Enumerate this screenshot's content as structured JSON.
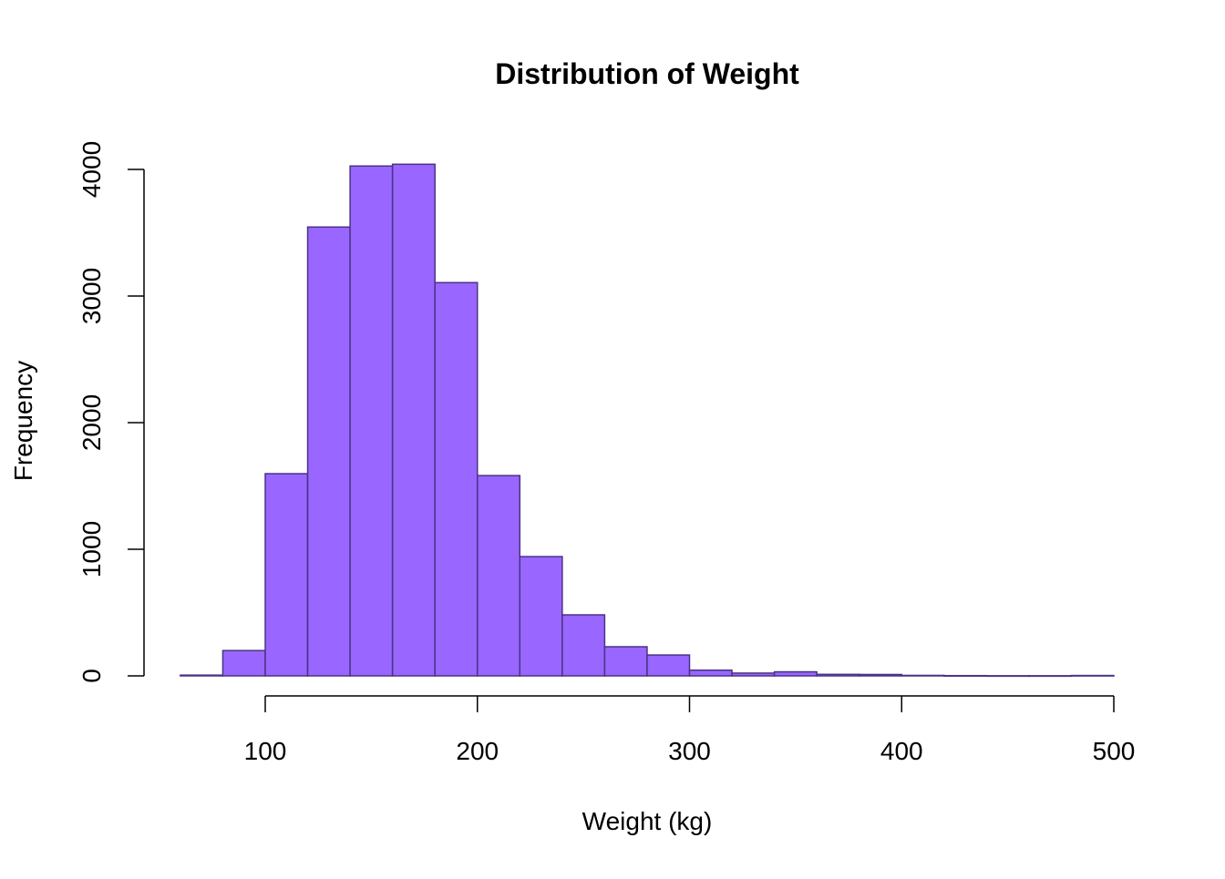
{
  "chart_data": {
    "type": "bar",
    "title": "Distribution of Weight",
    "xlabel": "Weight (kg)",
    "ylabel": "Frequency",
    "bin_edges": [
      60,
      80,
      100,
      120,
      140,
      160,
      180,
      200,
      220,
      240,
      260,
      280,
      300,
      320,
      340,
      360,
      380,
      400,
      420,
      440,
      460,
      480,
      500
    ],
    "values": [
      6,
      200,
      1597,
      3545,
      4027,
      4041,
      3106,
      1582,
      942,
      482,
      230,
      165,
      45,
      22,
      32,
      12,
      11,
      4,
      2,
      1,
      1,
      3
    ],
    "xlim": [
      60,
      500
    ],
    "ylim": [
      0,
      4100
    ],
    "x_ticks": [
      100,
      200,
      300,
      400,
      500
    ],
    "x_tick_labels": [
      "100",
      "200",
      "300",
      "400",
      "500"
    ],
    "y_ticks": [
      0,
      1000,
      2000,
      3000,
      4000
    ],
    "y_tick_labels": [
      "0",
      "1000",
      "2000",
      "3000",
      "4000"
    ],
    "grid": false,
    "colors": {
      "fill": "#9966FF",
      "border": "#4B3285"
    }
  }
}
